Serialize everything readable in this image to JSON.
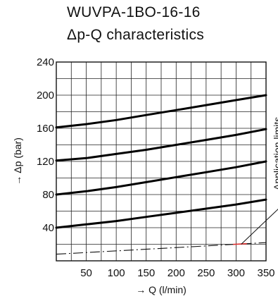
{
  "chart_data": {
    "type": "line",
    "title": "WUVPA-1BO-16-16",
    "subtitle": "Δp-Q characteristics",
    "xlabel": "→ Q (l/min)",
    "ylabel": "→ Δp (bar)",
    "xlim": [
      0,
      350
    ],
    "ylim": [
      0,
      240
    ],
    "xticks": [
      50,
      100,
      150,
      200,
      250,
      300,
      350
    ],
    "yticks": [
      40,
      80,
      120,
      160,
      200,
      240
    ],
    "grid": true,
    "series": [
      {
        "x": [
          0,
          50,
          100,
          150,
          200,
          250,
          300,
          350
        ],
        "y": [
          161,
          165,
          170,
          176,
          182,
          188,
          194,
          200
        ]
      },
      {
        "x": [
          0,
          50,
          100,
          150,
          200,
          250,
          300,
          350
        ],
        "y": [
          121,
          124,
          129,
          134,
          140,
          146,
          152,
          159
        ]
      },
      {
        "x": [
          0,
          50,
          100,
          150,
          200,
          250,
          300,
          350
        ],
        "y": [
          80,
          84,
          89,
          95,
          101,
          107,
          113,
          120
        ]
      },
      {
        "x": [
          0,
          50,
          100,
          150,
          200,
          250,
          300,
          350
        ],
        "y": [
          40,
          44,
          48,
          53,
          58,
          63,
          68,
          74
        ]
      }
    ],
    "application_limit": {
      "x": [
        0,
        350
      ],
      "y": [
        8,
        22
      ],
      "style": "dash-dot"
    },
    "annotations": [
      {
        "text": "Application limits",
        "x": 305,
        "y": 20
      }
    ]
  }
}
